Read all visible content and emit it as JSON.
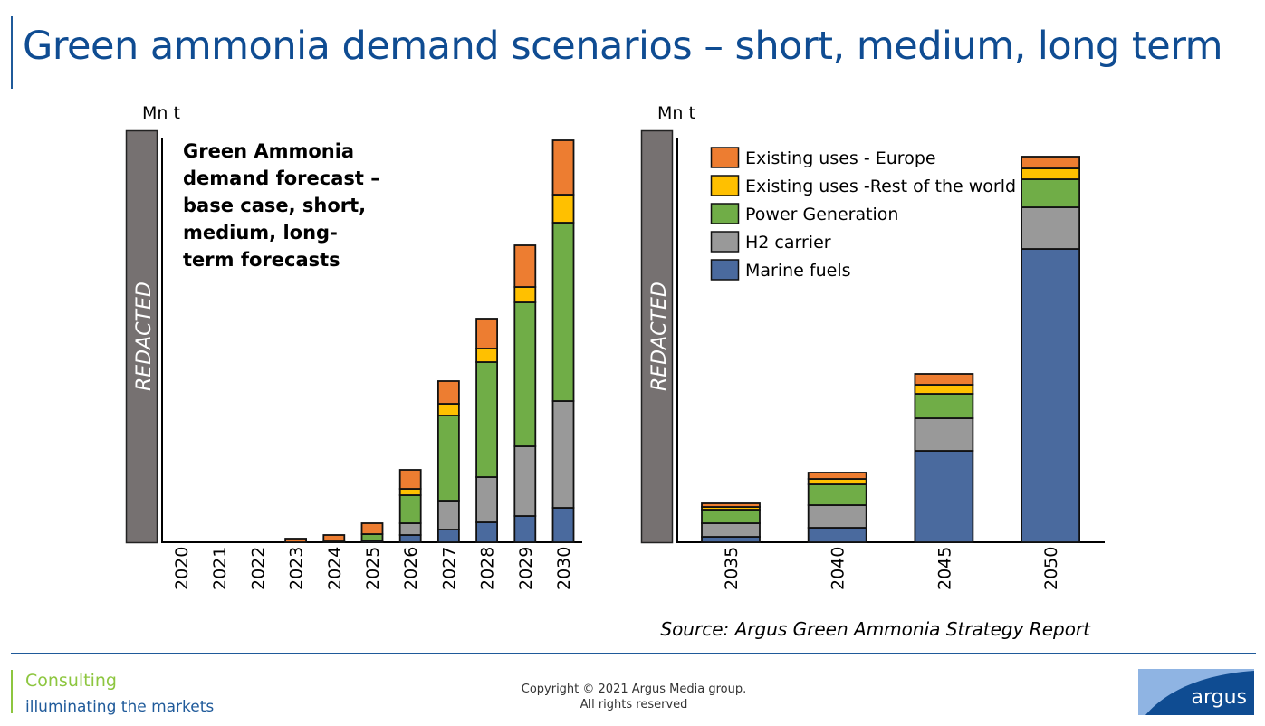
{
  "page": {
    "title": "Green ammonia demand scenarios – short, medium, long term",
    "source": "Source: Argus Green Ammonia Strategy Report",
    "footer": {
      "division": "Consulting",
      "tagline": "illuminating the markets",
      "copyright_line1": "Copyright © 2021 Argus Media group.",
      "copyright_line2": "All rights reserved",
      "logo_text": "argus"
    }
  },
  "colors": {
    "europe": "#ed7d31",
    "rest_of_world": "#ffc000",
    "power_generation": "#70ad47",
    "h2_carrier": "#999999",
    "marine_fuels": "#4a6a9e",
    "redacted_fill": "#767171"
  },
  "chart_data": [
    {
      "type": "bar",
      "stacked": true,
      "title": "Green Ammonia demand forecast – base case, short, medium, long-term forecasts",
      "annotation_lines": [
        "Green Ammonia",
        "demand forecast –",
        "base case, short,",
        "medium, long-",
        "term forecasts"
      ],
      "ylabel": "Mn t",
      "y_axis_note": "REDACTED",
      "value_units_note": "relative units estimated from bar heights; y-axis scale redacted",
      "ylim": [
        0,
        45
      ],
      "categories": [
        "2020",
        "2021",
        "2022",
        "2023",
        "2024",
        "2025",
        "2026",
        "2027",
        "2028",
        "2029",
        "2030"
      ],
      "series": [
        {
          "name": "Marine fuels",
          "color_key": "marine_fuels",
          "values": [
            0,
            0,
            0,
            0,
            0,
            0.2,
            0.8,
            1.4,
            2.2,
            2.9,
            3.8
          ]
        },
        {
          "name": "H2 carrier",
          "color_key": "h2_carrier",
          "values": [
            0,
            0,
            0,
            0,
            0,
            0,
            1.3,
            3.2,
            5.0,
            7.7,
            11.8
          ]
        },
        {
          "name": "Power Generation",
          "color_key": "power_generation",
          "values": [
            0,
            0,
            0,
            0,
            0.1,
            0.7,
            3.1,
            9.4,
            12.7,
            15.9,
            19.7
          ]
        },
        {
          "name": "Existing uses -Rest of the world",
          "color_key": "rest_of_world",
          "values": [
            0,
            0,
            0,
            0,
            0,
            0,
            0.7,
            1.3,
            1.5,
            1.7,
            3.1
          ]
        },
        {
          "name": "Existing uses - Europe",
          "color_key": "europe",
          "values": [
            0,
            0,
            0,
            0.4,
            0.7,
            1.2,
            2.1,
            2.5,
            3.3,
            4.6,
            6.0
          ]
        }
      ],
      "grid": false
    },
    {
      "type": "bar",
      "stacked": true,
      "title": "",
      "ylabel": "Mn t",
      "y_axis_note": "REDACTED",
      "value_units_note": "relative units estimated from bar heights; y-axis scale redacted",
      "ylim": [
        0,
        45
      ],
      "categories": [
        "2035",
        "2040",
        "2045",
        "2050"
      ],
      "series": [
        {
          "name": "Marine fuels",
          "color_key": "marine_fuels",
          "values": [
            0.6,
            1.6,
            10.1,
            32.4
          ]
        },
        {
          "name": "H2 carrier",
          "color_key": "h2_carrier",
          "values": [
            1.5,
            2.5,
            3.6,
            4.6
          ]
        },
        {
          "name": "Power Generation",
          "color_key": "power_generation",
          "values": [
            1.5,
            2.3,
            2.7,
            3.1
          ]
        },
        {
          "name": "Existing uses -Rest of the world",
          "color_key": "rest_of_world",
          "values": [
            0.3,
            0.6,
            1.0,
            1.2
          ]
        },
        {
          "name": "Existing uses - Europe",
          "color_key": "europe",
          "values": [
            0.4,
            0.7,
            1.2,
            1.3
          ]
        }
      ],
      "legend": {
        "placement": "top-left",
        "entries": [
          {
            "label": "Existing uses - Europe",
            "color_key": "europe"
          },
          {
            "label": "Existing uses -Rest of the world",
            "color_key": "rest_of_world"
          },
          {
            "label": "Power Generation",
            "color_key": "power_generation"
          },
          {
            "label": "H2 carrier",
            "color_key": "h2_carrier"
          },
          {
            "label": "Marine fuels",
            "color_key": "marine_fuels"
          }
        ]
      },
      "grid": false
    }
  ]
}
